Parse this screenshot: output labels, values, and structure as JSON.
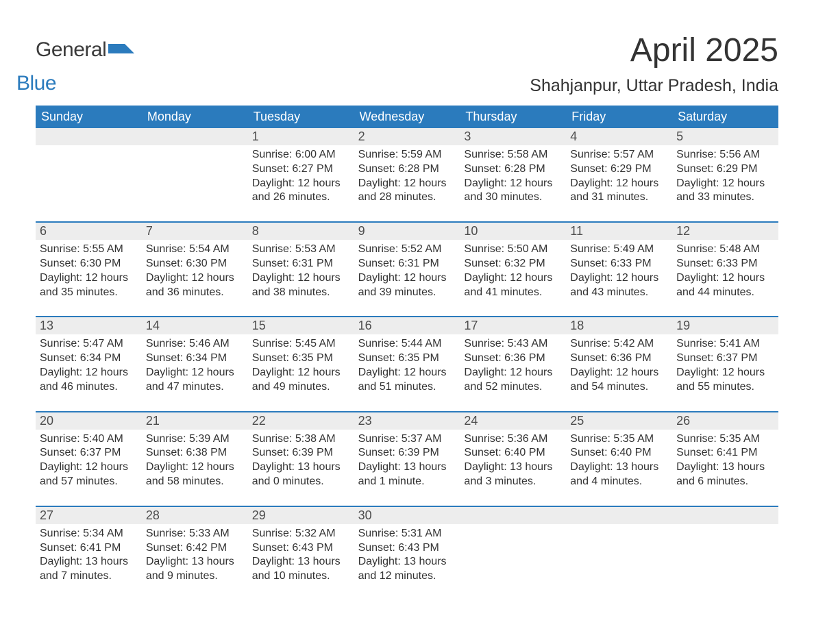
{
  "brand": {
    "part1": "General",
    "part2": "Blue"
  },
  "title": "April 2025",
  "location": "Shahjanpur, Uttar Pradesh, India",
  "colors": {
    "header_bg": "#2b7bbd",
    "daynum_bg": "#ededed",
    "week_border": "#2b7bbd",
    "text": "#333333",
    "logo_blue": "#2b7bbd",
    "background": "#ffffff"
  },
  "day_names": [
    "Sunday",
    "Monday",
    "Tuesday",
    "Wednesday",
    "Thursday",
    "Friday",
    "Saturday"
  ],
  "weeks": [
    {
      "datenums": [
        "",
        "",
        "1",
        "2",
        "3",
        "4",
        "5"
      ],
      "cells": [
        null,
        null,
        {
          "sunrise": "Sunrise: 6:00 AM",
          "sunset": "Sunset: 6:27 PM",
          "day1": "Daylight: 12 hours",
          "day2": "and 26 minutes."
        },
        {
          "sunrise": "Sunrise: 5:59 AM",
          "sunset": "Sunset: 6:28 PM",
          "day1": "Daylight: 12 hours",
          "day2": "and 28 minutes."
        },
        {
          "sunrise": "Sunrise: 5:58 AM",
          "sunset": "Sunset: 6:28 PM",
          "day1": "Daylight: 12 hours",
          "day2": "and 30 minutes."
        },
        {
          "sunrise": "Sunrise: 5:57 AM",
          "sunset": "Sunset: 6:29 PM",
          "day1": "Daylight: 12 hours",
          "day2": "and 31 minutes."
        },
        {
          "sunrise": "Sunrise: 5:56 AM",
          "sunset": "Sunset: 6:29 PM",
          "day1": "Daylight: 12 hours",
          "day2": "and 33 minutes."
        }
      ]
    },
    {
      "datenums": [
        "6",
        "7",
        "8",
        "9",
        "10",
        "11",
        "12"
      ],
      "cells": [
        {
          "sunrise": "Sunrise: 5:55 AM",
          "sunset": "Sunset: 6:30 PM",
          "day1": "Daylight: 12 hours",
          "day2": "and 35 minutes."
        },
        {
          "sunrise": "Sunrise: 5:54 AM",
          "sunset": "Sunset: 6:30 PM",
          "day1": "Daylight: 12 hours",
          "day2": "and 36 minutes."
        },
        {
          "sunrise": "Sunrise: 5:53 AM",
          "sunset": "Sunset: 6:31 PM",
          "day1": "Daylight: 12 hours",
          "day2": "and 38 minutes."
        },
        {
          "sunrise": "Sunrise: 5:52 AM",
          "sunset": "Sunset: 6:31 PM",
          "day1": "Daylight: 12 hours",
          "day2": "and 39 minutes."
        },
        {
          "sunrise": "Sunrise: 5:50 AM",
          "sunset": "Sunset: 6:32 PM",
          "day1": "Daylight: 12 hours",
          "day2": "and 41 minutes."
        },
        {
          "sunrise": "Sunrise: 5:49 AM",
          "sunset": "Sunset: 6:33 PM",
          "day1": "Daylight: 12 hours",
          "day2": "and 43 minutes."
        },
        {
          "sunrise": "Sunrise: 5:48 AM",
          "sunset": "Sunset: 6:33 PM",
          "day1": "Daylight: 12 hours",
          "day2": "and 44 minutes."
        }
      ]
    },
    {
      "datenums": [
        "13",
        "14",
        "15",
        "16",
        "17",
        "18",
        "19"
      ],
      "cells": [
        {
          "sunrise": "Sunrise: 5:47 AM",
          "sunset": "Sunset: 6:34 PM",
          "day1": "Daylight: 12 hours",
          "day2": "and 46 minutes."
        },
        {
          "sunrise": "Sunrise: 5:46 AM",
          "sunset": "Sunset: 6:34 PM",
          "day1": "Daylight: 12 hours",
          "day2": "and 47 minutes."
        },
        {
          "sunrise": "Sunrise: 5:45 AM",
          "sunset": "Sunset: 6:35 PM",
          "day1": "Daylight: 12 hours",
          "day2": "and 49 minutes."
        },
        {
          "sunrise": "Sunrise: 5:44 AM",
          "sunset": "Sunset: 6:35 PM",
          "day1": "Daylight: 12 hours",
          "day2": "and 51 minutes."
        },
        {
          "sunrise": "Sunrise: 5:43 AM",
          "sunset": "Sunset: 6:36 PM",
          "day1": "Daylight: 12 hours",
          "day2": "and 52 minutes."
        },
        {
          "sunrise": "Sunrise: 5:42 AM",
          "sunset": "Sunset: 6:36 PM",
          "day1": "Daylight: 12 hours",
          "day2": "and 54 minutes."
        },
        {
          "sunrise": "Sunrise: 5:41 AM",
          "sunset": "Sunset: 6:37 PM",
          "day1": "Daylight: 12 hours",
          "day2": "and 55 minutes."
        }
      ]
    },
    {
      "datenums": [
        "20",
        "21",
        "22",
        "23",
        "24",
        "25",
        "26"
      ],
      "cells": [
        {
          "sunrise": "Sunrise: 5:40 AM",
          "sunset": "Sunset: 6:37 PM",
          "day1": "Daylight: 12 hours",
          "day2": "and 57 minutes."
        },
        {
          "sunrise": "Sunrise: 5:39 AM",
          "sunset": "Sunset: 6:38 PM",
          "day1": "Daylight: 12 hours",
          "day2": "and 58 minutes."
        },
        {
          "sunrise": "Sunrise: 5:38 AM",
          "sunset": "Sunset: 6:39 PM",
          "day1": "Daylight: 13 hours",
          "day2": "and 0 minutes."
        },
        {
          "sunrise": "Sunrise: 5:37 AM",
          "sunset": "Sunset: 6:39 PM",
          "day1": "Daylight: 13 hours",
          "day2": "and 1 minute."
        },
        {
          "sunrise": "Sunrise: 5:36 AM",
          "sunset": "Sunset: 6:40 PM",
          "day1": "Daylight: 13 hours",
          "day2": "and 3 minutes."
        },
        {
          "sunrise": "Sunrise: 5:35 AM",
          "sunset": "Sunset: 6:40 PM",
          "day1": "Daylight: 13 hours",
          "day2": "and 4 minutes."
        },
        {
          "sunrise": "Sunrise: 5:35 AM",
          "sunset": "Sunset: 6:41 PM",
          "day1": "Daylight: 13 hours",
          "day2": "and 6 minutes."
        }
      ]
    },
    {
      "datenums": [
        "27",
        "28",
        "29",
        "30",
        "",
        "",
        ""
      ],
      "cells": [
        {
          "sunrise": "Sunrise: 5:34 AM",
          "sunset": "Sunset: 6:41 PM",
          "day1": "Daylight: 13 hours",
          "day2": "and 7 minutes."
        },
        {
          "sunrise": "Sunrise: 5:33 AM",
          "sunset": "Sunset: 6:42 PM",
          "day1": "Daylight: 13 hours",
          "day2": "and 9 minutes."
        },
        {
          "sunrise": "Sunrise: 5:32 AM",
          "sunset": "Sunset: 6:43 PM",
          "day1": "Daylight: 13 hours",
          "day2": "and 10 minutes."
        },
        {
          "sunrise": "Sunrise: 5:31 AM",
          "sunset": "Sunset: 6:43 PM",
          "day1": "Daylight: 13 hours",
          "day2": "and 12 minutes."
        },
        null,
        null,
        null
      ]
    }
  ]
}
